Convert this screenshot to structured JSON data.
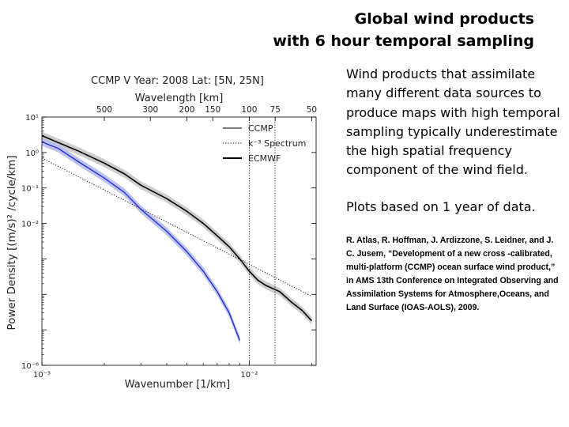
{
  "slide": {
    "title_line1": "Global wind products",
    "title_line2": "with 6 hour temporal sampling",
    "description": "Wind products that assimilate many different data sources to produce maps with high temporal sampling typically underestimate the high spatial frequency component of the wind field.",
    "note": "Plots based on 1 year of data.",
    "reference": "R. Atlas, R. Hoffman, J. Ardizzone, S. Leidner, and J. C. Jusem, “Development of a new cross -calibrated, multi-platform (CCMP) ocean surface wind product,” in AMS 13th Conference on Integrated Observing and Assimilation Systems for Atmosphere,Oceans, and Land Surface (IOAS-AOLS), 2009."
  },
  "chart_data": {
    "type": "line",
    "title": "CCMP V Year: 2008 Lat: [5N, 25N]",
    "xlabel": "Wavenumber [1/km]",
    "ylabel": "Power Density [(m/s)² /cycle/km]",
    "top_xlabel": "Wavelength [km]",
    "xscale": "log",
    "yscale": "log",
    "xlim": [
      0.001,
      0.021
    ],
    "ylim": [
      1e-06,
      10
    ],
    "xticks": [
      {
        "label": "10⁻³",
        "value": 0.001
      },
      {
        "label": "10⁻²",
        "value": 0.01
      }
    ],
    "yticks": [
      {
        "label": "10¹",
        "value": 10
      },
      {
        "label": "10⁰",
        "value": 1
      },
      {
        "label": "10⁻¹",
        "value": 0.1
      },
      {
        "label": "10⁻²",
        "value": 0.01
      },
      {
        "label": "10⁻⁶",
        "value": 1e-06
      }
    ],
    "top_ticks": [
      "500",
      "300",
      "200",
      "150",
      "100",
      "75",
      "50"
    ],
    "top_tick_values": [
      500,
      300,
      200,
      150,
      100,
      75,
      50
    ],
    "vlines": [
      0.01,
      0.0133
    ],
    "legend": {
      "placement": "top-right",
      "items": [
        {
          "label": "CCMP",
          "style": "thin-solid"
        },
        {
          "label": "k⁻³ Spectrum",
          "style": "dotted"
        },
        {
          "label": "ECMWF",
          "style": "thick-solid"
        }
      ]
    },
    "series": [
      {
        "name": "CCMP",
        "color": "#1f2fd6",
        "band_color": "#b3b8f0",
        "x": [
          0.001,
          0.0012,
          0.0015,
          0.002,
          0.0025,
          0.003,
          0.004,
          0.005,
          0.006,
          0.007,
          0.008,
          0.009
        ],
        "y": [
          2.0,
          1.3,
          0.55,
          0.19,
          0.075,
          0.025,
          0.006,
          0.0016,
          0.00045,
          0.00012,
          3e-05,
          5e-06
        ]
      },
      {
        "name": "ECMWF",
        "color": "#000000",
        "band_color": "#c4c4c4",
        "x": [
          0.001,
          0.0012,
          0.0015,
          0.002,
          0.0025,
          0.003,
          0.004,
          0.005,
          0.006,
          0.007,
          0.008,
          0.009,
          0.01,
          0.011,
          0.012,
          0.014,
          0.016,
          0.018,
          0.02
        ],
        "y": [
          3.0,
          1.9,
          1.1,
          0.5,
          0.25,
          0.12,
          0.05,
          0.022,
          0.01,
          0.0045,
          0.0022,
          0.001,
          0.00045,
          0.00025,
          0.00018,
          0.00012,
          6e-05,
          3.5e-05,
          1.8e-05
        ]
      },
      {
        "name": "k⁻³ Spectrum",
        "color": "#000000",
        "x": [
          0.001,
          0.02
        ],
        "y": [
          0.7,
          8.8e-05
        ]
      }
    ]
  }
}
